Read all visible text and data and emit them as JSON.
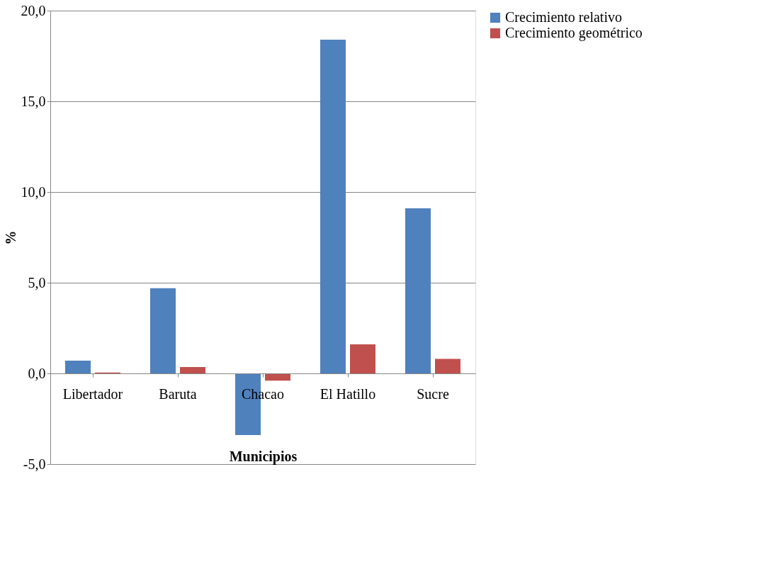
{
  "chart_data": {
    "type": "bar",
    "xlabel": "Municipios",
    "ylabel": "%",
    "categories": [
      "Libertador",
      "Baruta",
      "Chacao",
      "El Hatillo",
      "Sucre"
    ],
    "series": [
      {
        "name": "Crecimiento relativo",
        "color": "#4f81bd",
        "values": [
          0.7,
          4.7,
          -3.4,
          18.4,
          9.1
        ]
      },
      {
        "name": "Crecimiento geométrico",
        "color": "#c0504d",
        "values": [
          0.05,
          0.35,
          -0.4,
          1.6,
          0.8
        ]
      }
    ],
    "ylim": [
      -5,
      20
    ],
    "yticks": [
      {
        "value": -5,
        "label": "-5,0"
      },
      {
        "value": 0,
        "label": "0,0"
      },
      {
        "value": 5,
        "label": "5,0"
      },
      {
        "value": 10,
        "label": "10,0"
      },
      {
        "value": 15,
        "label": "15,0"
      },
      {
        "value": 20,
        "label": "20,0"
      }
    ],
    "grid": "y",
    "legend": "right"
  }
}
